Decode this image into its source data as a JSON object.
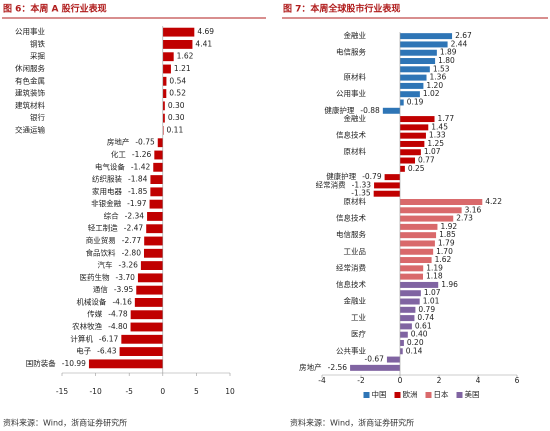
{
  "chart_data": [
    {
      "type": "bar",
      "orientation": "horizontal",
      "title": "图 6：本周 A 股行业表现",
      "source": "资料来源：Wind，浙商证券研究所",
      "categories": [
        "公用事业",
        "钢铁",
        "采掘",
        "休闲服务",
        "有色金属",
        "建筑装饰",
        "建筑材料",
        "银行",
        "交通运输",
        "房地产",
        "化工",
        "电气设备",
        "纺织服装",
        "家用电器",
        "非银金融",
        "综合",
        "轻工制造",
        "商业贸易",
        "食品饮料",
        "汽车",
        "医药生物",
        "通信",
        "机械设备",
        "传媒",
        "农林牧渔",
        "计算机",
        "电子",
        "国防装备"
      ],
      "values": [
        4.69,
        4.41,
        1.62,
        1.21,
        0.54,
        0.52,
        0.3,
        0.3,
        0.11,
        -0.75,
        -1.26,
        -1.42,
        -1.84,
        -1.85,
        -1.97,
        -2.34,
        -2.47,
        -2.77,
        -2.8,
        -3.26,
        -3.7,
        -3.95,
        -4.16,
        -4.78,
        -4.8,
        -6.17,
        -6.43,
        -10.99
      ],
      "value_labels": [
        "4.69",
        "4.41",
        "1.62",
        "1.21",
        "0.54",
        "0.52",
        "0.30",
        "0.30",
        "0.11",
        "-0.75",
        "-1.26",
        "-1.42",
        "-1.84",
        "-1.85",
        "-1.97",
        "-2.34",
        "-2.47",
        "-2.77",
        "-2.80",
        "-3.26",
        "-3.70",
        "-3.95",
        "-4.16",
        "-4.78",
        "-4.80",
        "-6.17",
        "-6.43",
        "-10.99"
      ],
      "color": "#c00000",
      "xlim": [
        -15,
        10
      ],
      "xticks": [
        -15,
        -10,
        -5,
        0,
        5,
        10
      ]
    },
    {
      "type": "bar",
      "orientation": "horizontal",
      "title": "图 7：本周全球股市行业表现",
      "source": "资料来源：Wind，浙商证券研究所",
      "categories": [
        "金融业",
        null,
        "电信服务",
        null,
        null,
        "原材料",
        null,
        "公用事业",
        null,
        "健康护理",
        "金融业",
        null,
        "信息技术",
        null,
        "原材料",
        null,
        null,
        "健康护理",
        "经常消费",
        null,
        "原材料",
        null,
        "信息技术",
        null,
        "电信服务",
        null,
        "工业品",
        null,
        "经常消费",
        null,
        "信息技术",
        null,
        "金融业",
        null,
        "工业",
        null,
        "医疗",
        null,
        "公共事业",
        null,
        "房地产"
      ],
      "series": [
        {
          "name": "中国",
          "color": "#2e75b6",
          "values": [
            2.67,
            2.44,
            1.89,
            1.8,
            1.53,
            1.36,
            1.2,
            1.02,
            0.19,
            -0.88,
            null,
            null,
            null,
            null,
            null,
            null,
            null,
            null,
            null,
            null,
            null,
            null,
            null,
            null,
            null,
            null,
            null,
            null,
            null,
            null,
            null,
            null,
            null,
            null,
            null,
            null,
            null,
            null,
            null,
            null,
            null
          ],
          "value_labels": [
            "2.67",
            "2.44",
            "1.89",
            "1.80",
            "1.53",
            "1.36",
            "1.20",
            "1.02",
            "0.19",
            "-0.88",
            null,
            null,
            null,
            null,
            null,
            null,
            null,
            null,
            null,
            null,
            null,
            null,
            null,
            null,
            null,
            null,
            null,
            null,
            null,
            null,
            null,
            null,
            null,
            null,
            null,
            null,
            null,
            null,
            null,
            null,
            null
          ]
        },
        {
          "name": "欧洲",
          "color": "#c00000",
          "values": [
            null,
            null,
            null,
            null,
            null,
            null,
            null,
            null,
            null,
            null,
            1.77,
            1.45,
            1.33,
            1.25,
            1.07,
            0.77,
            0.25,
            -0.79,
            -1.33,
            -1.35,
            null,
            null,
            null,
            null,
            null,
            null,
            null,
            null,
            null,
            null,
            null,
            null,
            null,
            null,
            null,
            null,
            null,
            null,
            null,
            null,
            null
          ],
          "value_labels": [
            null,
            null,
            null,
            null,
            null,
            null,
            null,
            null,
            null,
            null,
            "1.77",
            "1.45",
            "1.33",
            "1.25",
            "1.07",
            "0.77",
            "0.25",
            "-0.79",
            "-1.33",
            "-1.35",
            null,
            null,
            null,
            null,
            null,
            null,
            null,
            null,
            null,
            null,
            null,
            null,
            null,
            null,
            null,
            null,
            null,
            null,
            null,
            null,
            null
          ]
        },
        {
          "name": "日本",
          "color": "#d9696b",
          "values": [
            null,
            null,
            null,
            null,
            null,
            null,
            null,
            null,
            null,
            null,
            null,
            null,
            null,
            null,
            null,
            null,
            null,
            null,
            null,
            null,
            4.22,
            3.16,
            2.73,
            1.92,
            1.85,
            1.79,
            1.7,
            1.62,
            1.19,
            1.18,
            null,
            null,
            null,
            null,
            null,
            null,
            null,
            null,
            null,
            null,
            null
          ],
          "value_labels": [
            null,
            null,
            null,
            null,
            null,
            null,
            null,
            null,
            null,
            null,
            null,
            null,
            null,
            null,
            null,
            null,
            null,
            null,
            null,
            null,
            "4.22",
            "3.16",
            "2.73",
            "1.92",
            "1.85",
            "1.79",
            "1.70",
            "1.62",
            "1.19",
            "1.18",
            null,
            null,
            null,
            null,
            null,
            null,
            null,
            null,
            null,
            null,
            null
          ]
        },
        {
          "name": "美国",
          "color": "#8064a2",
          "values": [
            null,
            null,
            null,
            null,
            null,
            null,
            null,
            null,
            null,
            null,
            null,
            null,
            null,
            null,
            null,
            null,
            null,
            null,
            null,
            null,
            null,
            null,
            null,
            null,
            null,
            null,
            null,
            null,
            null,
            null,
            1.96,
            1.07,
            1.01,
            0.79,
            0.74,
            0.61,
            0.4,
            0.2,
            0.14,
            -0.67,
            -2.56
          ],
          "value_labels": [
            null,
            null,
            null,
            null,
            null,
            null,
            null,
            null,
            null,
            null,
            null,
            null,
            null,
            null,
            null,
            null,
            null,
            null,
            null,
            null,
            null,
            null,
            null,
            null,
            null,
            null,
            null,
            null,
            null,
            null,
            "1.96",
            "1.07",
            "1.01",
            "0.79",
            "0.74",
            "0.61",
            "0.40",
            "0.20",
            "0.14",
            "-0.67",
            "-2.56"
          ]
        }
      ],
      "xlim": [
        -4,
        6
      ],
      "xticks": [
        -4,
        -2,
        0,
        2,
        4,
        6
      ],
      "legend": "bottom"
    }
  ]
}
